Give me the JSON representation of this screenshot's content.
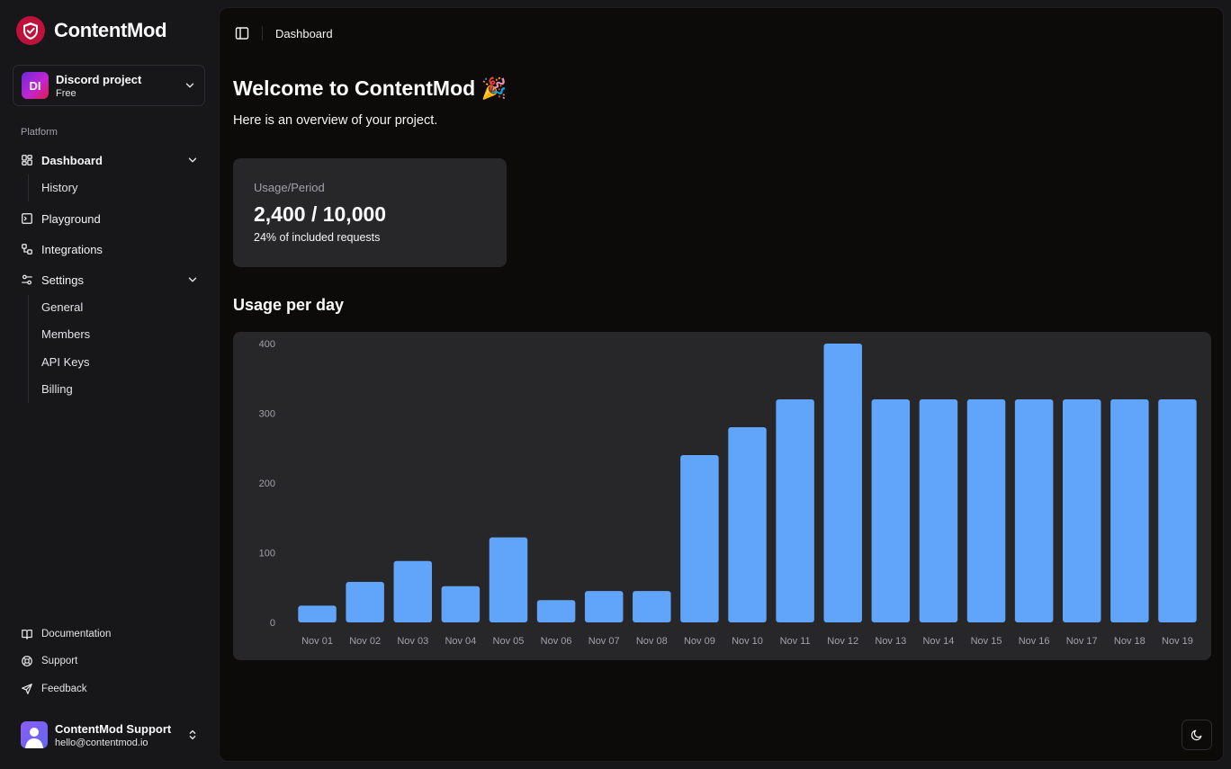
{
  "brand": {
    "name": "ContentMod"
  },
  "project": {
    "initials": "DI",
    "name": "Discord project",
    "plan": "Free"
  },
  "sidebar": {
    "section_label": "Platform",
    "dashboard": {
      "label": "Dashboard",
      "sub": [
        "History"
      ]
    },
    "playground": {
      "label": "Playground"
    },
    "integrations": {
      "label": "Integrations"
    },
    "settings": {
      "label": "Settings",
      "sub": [
        "General",
        "Members",
        "API Keys",
        "Billing"
      ]
    },
    "footer": {
      "documentation": "Documentation",
      "support": "Support",
      "feedback": "Feedback"
    }
  },
  "user": {
    "name": "ContentMod Support",
    "email": "hello@contentmod.io"
  },
  "header": {
    "breadcrumb": "Dashboard"
  },
  "main": {
    "title": "Welcome to ContentMod 🎉",
    "subtitle": "Here is an overview of your project.",
    "usage_card": {
      "label": "Usage/Period",
      "value": "2,400 / 10,000",
      "note": "24% of included requests"
    },
    "chart_heading": "Usage per day"
  },
  "chart_data": {
    "type": "bar",
    "title": "Usage per day",
    "categories": [
      "Nov 01",
      "Nov 02",
      "Nov 03",
      "Nov 04",
      "Nov 05",
      "Nov 06",
      "Nov 07",
      "Nov 08",
      "Nov 09",
      "Nov 10",
      "Nov 11",
      "Nov 12",
      "Nov 13",
      "Nov 14",
      "Nov 15",
      "Nov 16",
      "Nov 17",
      "Nov 18",
      "Nov 19"
    ],
    "values": [
      24,
      58,
      88,
      52,
      122,
      32,
      45,
      45,
      240,
      280,
      320,
      400,
      320,
      320,
      320,
      320,
      320,
      320,
      320
    ],
    "yticks": [
      0,
      100,
      200,
      300,
      400
    ],
    "ylim": [
      0,
      400
    ],
    "xlabel": "",
    "ylabel": "",
    "bar_color": "#60a5fa"
  },
  "colors": {
    "accent": "#60a5fa",
    "brand_red": "#e11d48",
    "panel": "#27272a"
  }
}
